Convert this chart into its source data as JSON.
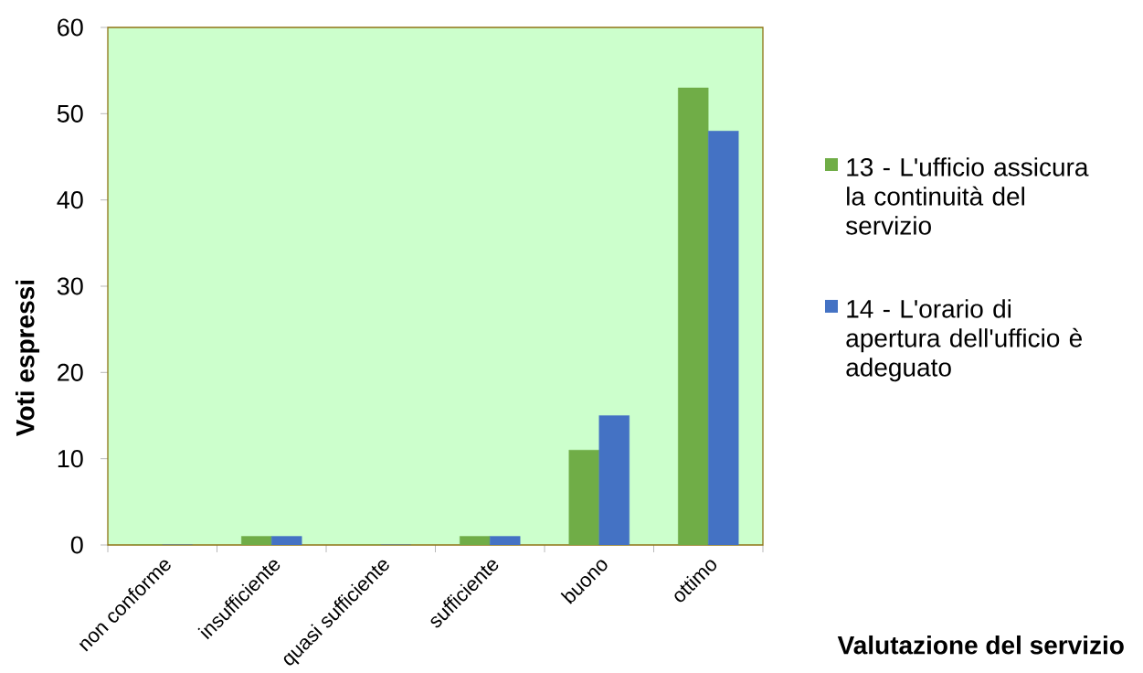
{
  "chart_data": {
    "type": "bar",
    "xlabel": "Valutazione del servizio",
    "ylabel": "Voti espressi",
    "categories": [
      "non conforme",
      "insufficiente",
      "quasi sufficiente",
      "sufficiente",
      "buono",
      "ottimo"
    ],
    "series": [
      {
        "name": "13 - L'ufficio assicura la continuità del servizio",
        "color": "#70ad47",
        "values": [
          0,
          1,
          0,
          1,
          11,
          53
        ]
      },
      {
        "name": "14 - L'orario di apertura dell'ufficio è adeguato",
        "color": "#4472c4",
        "values": [
          0,
          1,
          0,
          1,
          15,
          48
        ]
      }
    ],
    "ylim": [
      0,
      60
    ],
    "yticks": [
      0,
      10,
      20,
      30,
      40,
      50,
      60
    ],
    "legend": "right"
  }
}
